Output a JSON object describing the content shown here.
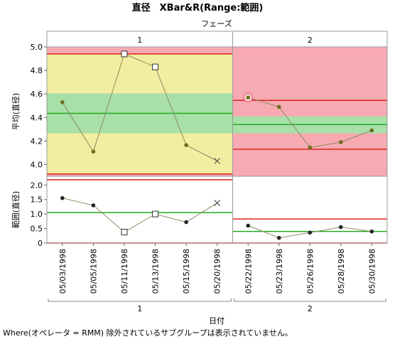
{
  "chart_data": {
    "type": "line",
    "title": "直径　XBar&R(Range:範囲)",
    "phase_label": "フェーズ",
    "xlabel": "日付",
    "footnote": "Where(オペレータ = RMM) 除外されているサブグループは表示されていません。",
    "categories": [
      "05/03/1998",
      "05/05/1998",
      "05/11/1998",
      "05/13/1998",
      "05/15/1998",
      "05/20/1998",
      "05/22/1998",
      "05/23/1998",
      "05/26/1998",
      "05/28/1998",
      "05/30/1998"
    ],
    "phases": [
      {
        "name": "1",
        "count": 6
      },
      {
        "name": "2",
        "count": 5
      }
    ],
    "xbar": {
      "ylabel": "平均(直径)",
      "ylim": [
        3.9,
        5.0
      ],
      "yticks": [
        "4.0",
        "4.2",
        "4.4",
        "4.6",
        "4.8",
        "5.0"
      ],
      "values": [
        4.53,
        4.11,
        4.94,
        4.83,
        4.165,
        4.03,
        4.57,
        4.49,
        4.145,
        4.19,
        4.29
      ],
      "markers": [
        "dot",
        "dot",
        "square",
        "square",
        "dot",
        "x",
        "ring",
        "dot",
        "dot",
        "dot",
        "dot"
      ],
      "limits": [
        {
          "center": 4.435,
          "ucl": 4.94,
          "lcl": 3.92,
          "zone_a": [
            4.265,
            4.605
          ]
        },
        {
          "center": 4.34,
          "ucl": 4.545,
          "lcl": 4.13,
          "zone_a": [
            4.265,
            4.41
          ]
        }
      ]
    },
    "range": {
      "ylabel": "範囲(直径)",
      "ylim": [
        0,
        2.3
      ],
      "yticks": [
        "0",
        "0.5",
        "1.0",
        "1.5",
        "2.0"
      ],
      "values": [
        1.55,
        1.3,
        0.38,
        1.0,
        0.72,
        1.38,
        0.6,
        0.18,
        0.36,
        0.55,
        0.4
      ],
      "markers": [
        "dot",
        "dot",
        "square",
        "square",
        "dot",
        "x",
        "dot",
        "dot",
        "dot",
        "dot",
        "dot"
      ],
      "limits": [
        {
          "center": 1.05,
          "ucl": 2.18,
          "lcl": 0.0
        },
        {
          "center": 0.4,
          "ucl": 0.83,
          "lcl": 0.0
        }
      ]
    },
    "colors": {
      "zone_yellow": "#f2eda0",
      "zone_green": "#a8e0a8",
      "zone_red": "#f7aab2",
      "center_line": "#22aa22",
      "limit_line": "#dd2222",
      "series_line": "#8a8a62",
      "xbar_point": "#6e6e1e",
      "range_point": "#222222",
      "frame": "#999999"
    }
  }
}
